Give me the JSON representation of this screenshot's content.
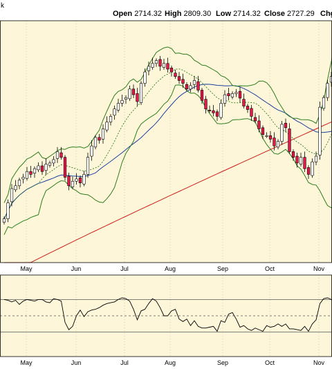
{
  "header": {
    "corner_label": "k",
    "open_label": "Open",
    "open_value": "2714.32",
    "high_label": "High",
    "high_value": "2809.30",
    "low_label": "Low",
    "low_value": "2714.32",
    "close_label": "Close",
    "close_value": "2727.29",
    "chg_label": "Chg"
  },
  "colors": {
    "panel_bg": "#fdf6d8",
    "up_candle": "#ffffff",
    "down_candle": "#e8174a",
    "bollinger": "#2e7d1f",
    "ma_short": "#1c3f9e",
    "ma_long": "#d01c1c",
    "mid_band": "#2e7d1f",
    "indicator_line": "#000000",
    "grid": "#888888"
  },
  "chart_data": [
    {
      "type": "candlestick",
      "title": "",
      "x_tick_labels": [
        "May",
        "Jun",
        "Jul",
        "Aug",
        "Sep",
        "Oct",
        "Nov"
      ],
      "price_range": [
        2455,
        2880
      ],
      "closes": [
        2532,
        2560,
        2585,
        2590,
        2600,
        2605,
        2615,
        2610,
        2620,
        2625,
        2615,
        2628,
        2630,
        2636,
        2650,
        2640,
        2605,
        2590,
        2598,
        2602,
        2595,
        2610,
        2640,
        2660,
        2675,
        2670,
        2690,
        2702,
        2712,
        2725,
        2735,
        2740,
        2745,
        2760,
        2750,
        2738,
        2770,
        2790,
        2800,
        2805,
        2810,
        2800,
        2805,
        2795,
        2790,
        2782,
        2775,
        2770,
        2760,
        2766,
        2775,
        2758,
        2740,
        2725,
        2722,
        2718,
        2712,
        2735,
        2750,
        2748,
        2752,
        2754,
        2744,
        2730,
        2724,
        2712,
        2704,
        2690,
        2680,
        2678,
        2672,
        2660,
        2668,
        2698,
        2692,
        2650,
        2640,
        2630,
        2640,
        2620,
        2610,
        2632,
        2642,
        2728,
        2745,
        2770,
        2782,
        2792
      ],
      "indicators": [
        "Bollinger Bands",
        "Moving average (short)",
        "Moving average (long)"
      ]
    },
    {
      "type": "line",
      "title": "",
      "x_tick_labels": [
        "May",
        "Jun",
        "Jul",
        "Aug",
        "Sep",
        "Oct",
        "Nov"
      ],
      "y_range": [
        0,
        100
      ],
      "reference_levels": [
        70,
        50,
        30
      ],
      "values": [
        70,
        69,
        67,
        69,
        64,
        68,
        70,
        69,
        68,
        70,
        70,
        67,
        66,
        71,
        70,
        68,
        42,
        33,
        37,
        50,
        57,
        49,
        55,
        57,
        58,
        60,
        63,
        65,
        66,
        67,
        70,
        72,
        71,
        68,
        58,
        45,
        56,
        58,
        65,
        71,
        68,
        60,
        50,
        50,
        56,
        58,
        46,
        43,
        46,
        38,
        44,
        37,
        35,
        35,
        36,
        37,
        31,
        44,
        42,
        52,
        54,
        46,
        36,
        38,
        34,
        32,
        35,
        33,
        31,
        38,
        36,
        37,
        40,
        37,
        40,
        34,
        34,
        33,
        32,
        37,
        31,
        40,
        45,
        65,
        71,
        72,
        70,
        68
      ]
    }
  ]
}
